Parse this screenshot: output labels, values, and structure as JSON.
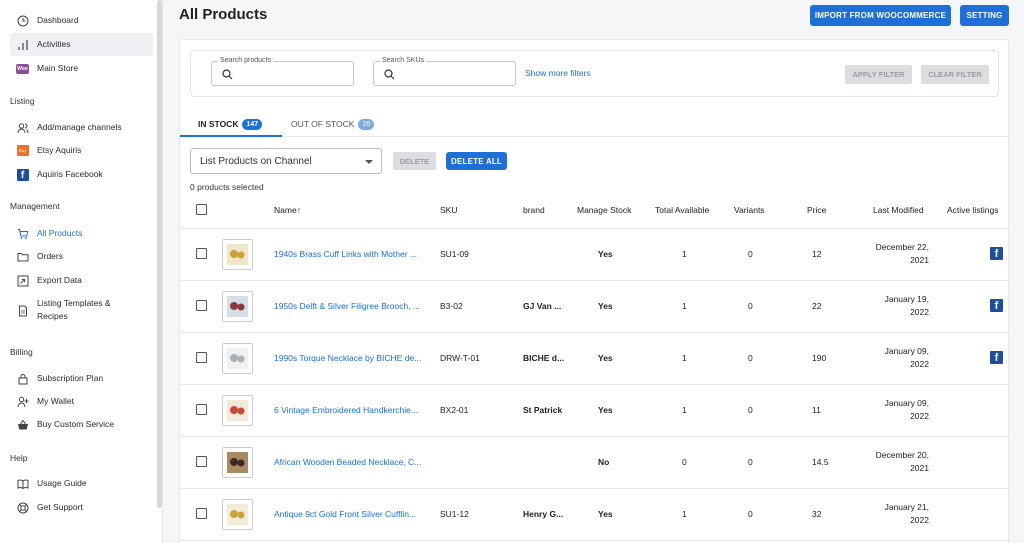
{
  "sidebar": {
    "items_top": [
      {
        "label": "Dashboard",
        "icon": "clock-icon"
      },
      {
        "label": "Activities",
        "icon": "bar-chart-icon"
      },
      {
        "label": "Main Store",
        "icon": "woocommerce-icon"
      }
    ],
    "sections": {
      "listing": "Listing",
      "management": "Management",
      "billing": "Billing",
      "help": "Help"
    },
    "listing_items": [
      {
        "label": "Add/manage channels",
        "icon": "users-icon"
      },
      {
        "label": "Etsy Aquiris",
        "icon": "etsy-icon"
      },
      {
        "label": "Aquiris Facebook",
        "icon": "facebook-icon"
      }
    ],
    "management_items": [
      {
        "label": "All Products",
        "icon": "cart-icon"
      },
      {
        "label": "Orders",
        "icon": "folder-icon"
      },
      {
        "label": "Export Data",
        "icon": "export-icon"
      },
      {
        "label": "Listing Templates &",
        "label2": "Recipes",
        "icon": "document-icon"
      }
    ],
    "billing_items": [
      {
        "label": "Subscription Plan",
        "icon": "lock-icon"
      },
      {
        "label": "My Wallet",
        "icon": "user-plus-icon"
      },
      {
        "label": "Buy Custom Service",
        "icon": "basket-icon"
      }
    ],
    "help_items": [
      {
        "label": "Usage Guide",
        "icon": "book-icon"
      },
      {
        "label": "Get Support",
        "icon": "lifebuoy-icon"
      }
    ],
    "etsy_text": "Etsy",
    "woo_text": "Woo"
  },
  "header": {
    "title": "All Products",
    "import_label": "IMPORT FROM WOOCOMMERCE",
    "setting_label": "SETTING"
  },
  "filters": {
    "search_products_label": "Search products",
    "search_skus_label": "Search SKUs",
    "show_more": "Show more filters",
    "apply": "APPLY FILTER",
    "clear": "CLEAR FILTER"
  },
  "tabs": [
    {
      "label": "IN STOCK",
      "count": "147"
    },
    {
      "label": "OUT OF STOCK",
      "count": "26"
    }
  ],
  "toolbar": {
    "channel_select": "List Products on Channel",
    "delete": "DELETE",
    "delete_all": "DELETE ALL",
    "selected_text": "0 products selected"
  },
  "table": {
    "headers": {
      "name": "Name",
      "sort_arrow": "↑",
      "sku": "SKU",
      "brand": "brand",
      "manage_stock": "Manage Stock",
      "total_available": "Total Available",
      "variants": "Variants",
      "price": "Price",
      "last_modified": "Last Modified",
      "active_listings": "Active listings"
    },
    "facebook_glyph": "f",
    "rows": [
      {
        "name": "1940s Brass Cuff Links with Mother ...",
        "sku": "SU1-09",
        "brand": "",
        "manage": "Yes",
        "total": "1",
        "variants": "0",
        "price": "12",
        "date1": "December 22,",
        "date2": "2021",
        "fb": true
      },
      {
        "name": "1950s Delft & Silver Filigree Brooch, ...",
        "sku": "B3-02",
        "brand": "GJ Van ...",
        "manage": "Yes",
        "total": "1",
        "variants": "0",
        "price": "22",
        "date1": "January 19,",
        "date2": "2022",
        "fb": true
      },
      {
        "name": "1990s Torque Necklace by BICHE de...",
        "sku": "DRW-T-01",
        "brand": "BICHE d...",
        "manage": "Yes",
        "total": "1",
        "variants": "0",
        "price": "190",
        "date1": "January 09,",
        "date2": "2022",
        "fb": true
      },
      {
        "name": "6 Vintage Embroidered Handkerchie...",
        "sku": "BX2-01",
        "brand": "St Patrick",
        "manage": "Yes",
        "total": "1",
        "variants": "0",
        "price": "11",
        "date1": "January 09,",
        "date2": "2022",
        "fb": false
      },
      {
        "name": "African Wooden Beaded Necklace, C...",
        "sku": "",
        "brand": "",
        "manage": "No",
        "total": "0",
        "variants": "0",
        "price": "14.5",
        "date1": "December 20,",
        "date2": "2021",
        "fb": false
      },
      {
        "name": "Antique 9ct Gold Front Silver Cufflin...",
        "sku": "SU1-12",
        "brand": "Henry G...",
        "manage": "Yes",
        "total": "1",
        "variants": "0",
        "price": "32",
        "date1": "January 21,",
        "date2": "2022",
        "fb": false
      }
    ]
  },
  "colors": {
    "accent": "#1e6fd6",
    "facebook": "#1f4f9c",
    "etsy": "#e8732a",
    "woo": "#8a4f97"
  }
}
